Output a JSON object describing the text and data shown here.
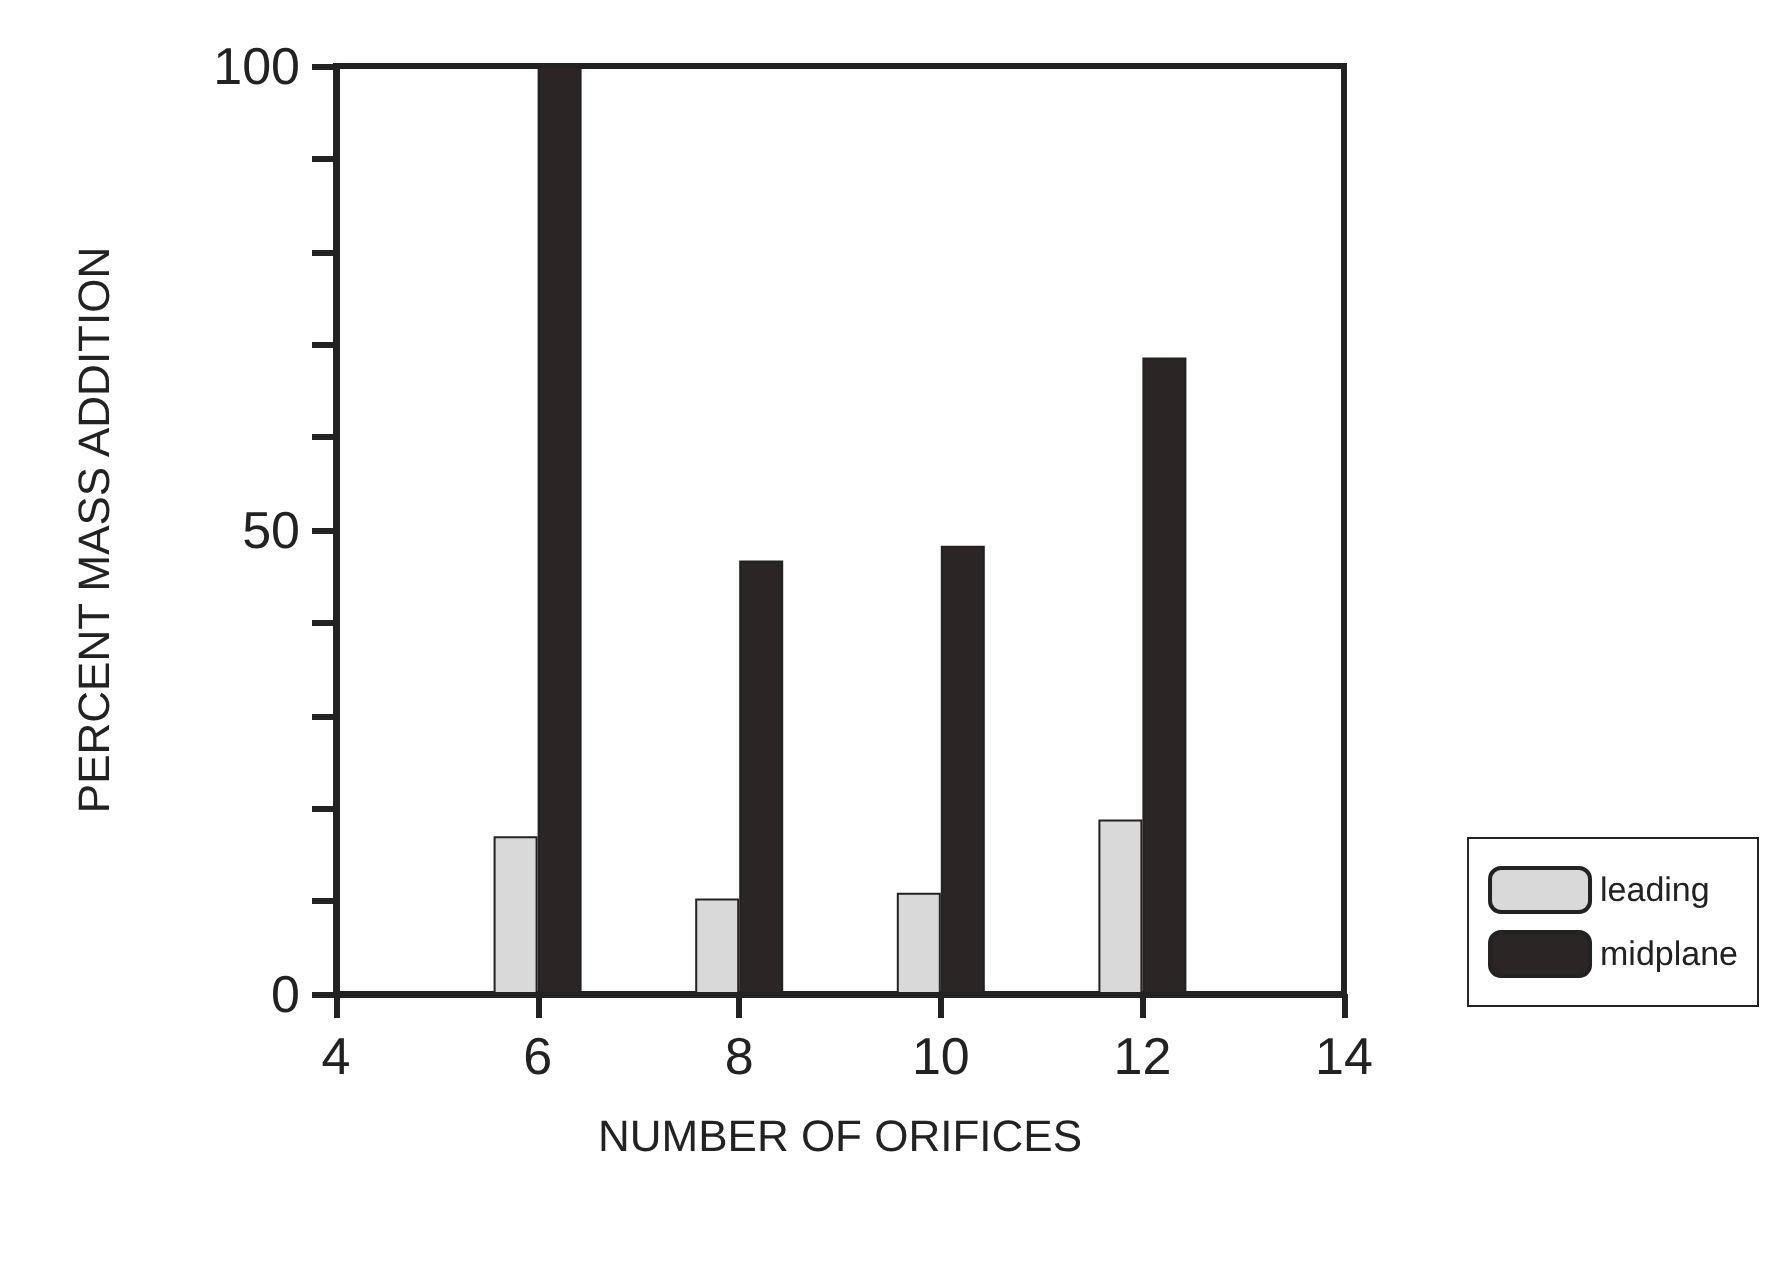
{
  "chart_data": {
    "type": "bar",
    "xlabel": "NUMBER OF ORIFICES",
    "ylabel": "PERCENT MASS ADDITION",
    "x": [
      6,
      8,
      10,
      12
    ],
    "series": [
      {
        "name": "leading",
        "color": "#d9d9d9",
        "values": [
          17,
          10.3,
          10.9,
          18.8
        ]
      },
      {
        "name": "midplane",
        "color": "#2b2526",
        "values": [
          100,
          46.7,
          48.3,
          68.6
        ]
      }
    ],
    "xlim": [
      4,
      14
    ],
    "xticks": [
      4,
      6,
      8,
      10,
      12,
      14
    ],
    "ylim": [
      0,
      100
    ],
    "yticks": [
      0,
      {
        "value": 10,
        "label": null
      },
      {
        "value": 20,
        "label": null
      },
      {
        "value": 30,
        "label": null
      },
      {
        "value": 40,
        "label": null
      },
      50,
      {
        "value": 60,
        "label": null
      },
      {
        "value": 70,
        "label": null
      },
      {
        "value": 80,
        "label": null
      },
      {
        "value": 90,
        "label": null
      },
      100
    ],
    "grid": false,
    "legend": "bottom right"
  }
}
